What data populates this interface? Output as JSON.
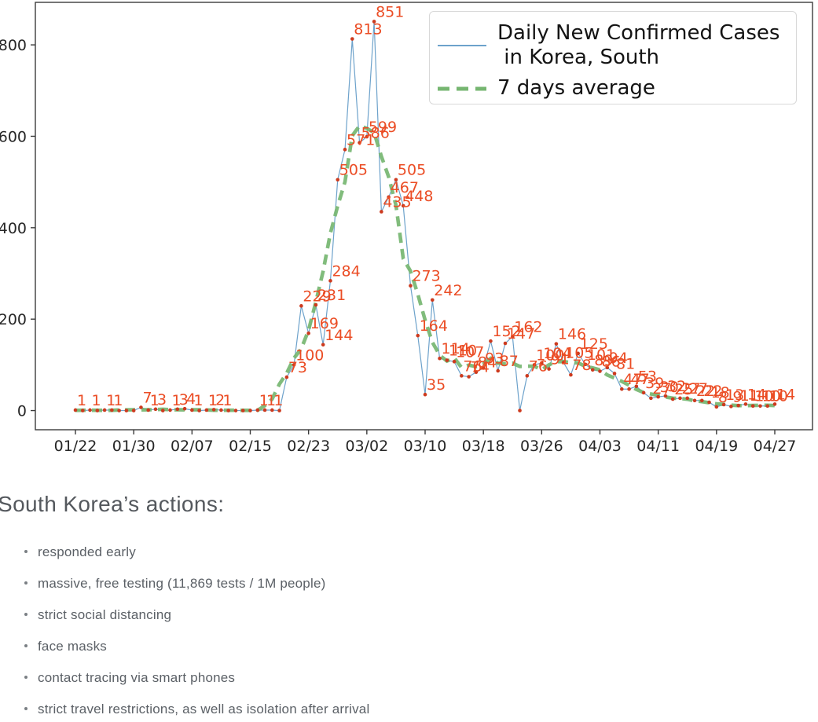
{
  "chart": {
    "legend": {
      "series1_line1": "Daily New Confirmed Cases",
      "series1_line2": " in Korea, South",
      "series2": "7 days average"
    }
  },
  "chart_data": {
    "type": "line",
    "title": "",
    "xlabel": "",
    "ylabel": "",
    "grid": false,
    "legend_position": "upper right",
    "x": [
      "01/22",
      "01/23",
      "01/24",
      "01/25",
      "01/26",
      "01/27",
      "01/28",
      "01/29",
      "01/30",
      "01/31",
      "02/01",
      "02/02",
      "02/03",
      "02/04",
      "02/05",
      "02/06",
      "02/07",
      "02/08",
      "02/09",
      "02/10",
      "02/11",
      "02/12",
      "02/13",
      "02/14",
      "02/15",
      "02/16",
      "02/17",
      "02/18",
      "02/19",
      "02/20",
      "02/21",
      "02/22",
      "02/23",
      "02/24",
      "02/25",
      "02/26",
      "02/27",
      "02/28",
      "02/29",
      "03/01",
      "03/02",
      "03/03",
      "03/04",
      "03/05",
      "03/06",
      "03/07",
      "03/08",
      "03/09",
      "03/10",
      "03/11",
      "03/12",
      "03/13",
      "03/14",
      "03/15",
      "03/16",
      "03/17",
      "03/18",
      "03/19",
      "03/20",
      "03/21",
      "03/22",
      "03/23",
      "03/24",
      "03/25",
      "03/26",
      "03/27",
      "03/28",
      "03/29",
      "03/30",
      "03/31",
      "04/01",
      "04/02",
      "04/03",
      "04/04",
      "04/05",
      "04/06",
      "04/07",
      "04/08",
      "04/09",
      "04/10",
      "04/11",
      "04/12",
      "04/13",
      "04/14",
      "04/15",
      "04/16",
      "04/17",
      "04/18",
      "04/19",
      "04/20",
      "04/21",
      "04/22",
      "04/23",
      "04/24",
      "04/25",
      "04/26",
      "04/27"
    ],
    "series": [
      {
        "name": "Daily New Confirmed Cases in Korea, South",
        "color": "#6da2cb",
        "values": [
          1,
          0,
          1,
          0,
          1,
          1,
          0,
          0,
          0,
          7,
          1,
          3,
          0,
          1,
          3,
          4,
          1,
          0,
          1,
          2,
          1,
          0,
          0,
          0,
          0,
          1,
          1,
          1,
          0,
          73,
          100,
          229,
          169,
          231,
          144,
          284,
          505,
          571,
          813,
          586,
          599,
          851,
          435,
          467,
          505,
          448,
          273,
          164,
          35,
          242,
          114,
          110,
          107,
          76,
          74,
          84,
          93,
          152,
          87,
          147,
          162,
          0,
          76,
          100,
          104,
          91,
          146,
          105,
          78,
          125,
          101,
          89,
          86,
          94,
          81,
          47,
          47,
          53,
          39,
          27,
          30,
          32,
          25,
          27,
          27,
          22,
          22,
          18,
          8,
          13,
          9,
          11,
          14,
          10,
          10,
          10,
          14
        ]
      },
      {
        "name": "7 days average",
        "color": "#76b671",
        "style": "dashed",
        "derived_from": "7-day centered rolling mean of the daily values"
      }
    ],
    "point_dot_color": "#cd3a1e",
    "point_label_color": "#eb4d25",
    "point_labels": "each non-zero daily value is annotated above its point",
    "yticks": [
      0,
      200,
      400,
      600,
      800
    ],
    "ylim": [
      -42,
      893
    ],
    "xticks": [
      "01/22",
      "01/30",
      "02/07",
      "02/15",
      "02/23",
      "03/02",
      "03/10",
      "03/18",
      "03/26",
      "04/03",
      "04/11",
      "04/19",
      "04/27"
    ],
    "xtick_step": 8
  },
  "actions": {
    "heading": "South Korea’s actions:",
    "items": [
      "responded early",
      "massive, free testing (11,869 tests / 1M people)",
      "strict social distancing",
      "face masks",
      "contact tracing via smart phones",
      "strict travel restrictions, as well as isolation after arrival"
    ]
  }
}
